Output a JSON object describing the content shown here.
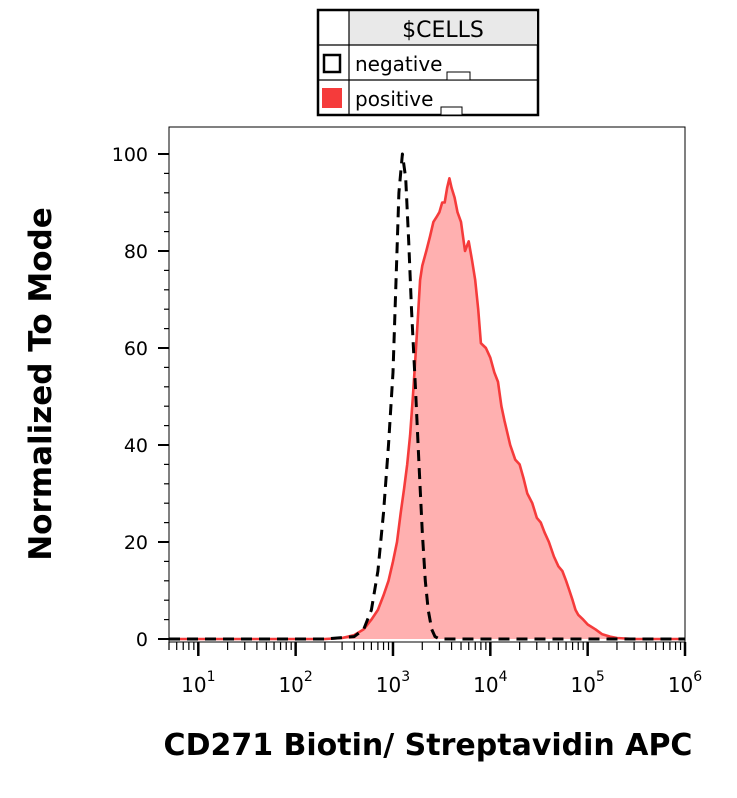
{
  "chart_data": {
    "type": "area",
    "title": "",
    "xlabel": "CD271 Biotin/ Streptavidin APC",
    "ylabel": "Normalized To Mode",
    "x_scale": "log",
    "xlim": [
      5,
      1000000
    ],
    "ylim": [
      0,
      100
    ],
    "y_ticks": [
      0,
      20,
      40,
      60,
      80,
      100
    ],
    "y_tick_labels": [
      "0",
      "20",
      "40",
      "60",
      "80",
      "100"
    ],
    "x_ticks": [
      10,
      100,
      1000,
      10000,
      100000,
      1000000
    ],
    "x_tick_base": "10",
    "x_tick_exponents": [
      "1",
      "2",
      "3",
      "4",
      "5",
      "6"
    ],
    "grid": false,
    "legend": {
      "title": "$CELLS",
      "position": "top-center",
      "entries": [
        {
          "name": "negative",
          "color": "#000000",
          "style": "dashed"
        },
        {
          "name": "positive",
          "color": "#f53b3b",
          "fill": "#ffb0b0"
        }
      ]
    },
    "series": [
      {
        "name": "negative",
        "x": [
          5,
          200,
          400,
          500,
          600,
          700,
          800,
          900,
          1000,
          1080,
          1150,
          1250,
          1350,
          1450,
          1550,
          1700,
          1850,
          2000,
          2150,
          2300,
          2500,
          2700,
          3000,
          3500,
          1000000
        ],
        "y": [
          0,
          0,
          0.5,
          2,
          6,
          14,
          26,
          40,
          55,
          75,
          92,
          100,
          95,
          82,
          68,
          52,
          36,
          22,
          12,
          6,
          2,
          0.5,
          0,
          0,
          0
        ]
      },
      {
        "name": "positive",
        "x": [
          5,
          200,
          300,
          400,
          500,
          600,
          700,
          800,
          900,
          1000,
          1100,
          1200,
          1300,
          1400,
          1500,
          1600,
          1700,
          1800,
          1900,
          2000,
          2200,
          2400,
          2600,
          2800,
          3000,
          3200,
          3400,
          3600,
          3800,
          4000,
          4300,
          4600,
          5000,
          5500,
          6000,
          6500,
          7000,
          7500,
          8000,
          9000,
          10000,
          11000,
          12000,
          13000,
          14000,
          16000,
          18000,
          20000,
          22000,
          24000,
          27000,
          30000,
          33000,
          36000,
          40000,
          45000,
          50000,
          55000,
          60000,
          65000,
          70000,
          75000,
          80000,
          90000,
          100000,
          120000,
          140000,
          170000,
          200000,
          300000,
          1000000
        ],
        "y": [
          0,
          0,
          0.2,
          0.8,
          2,
          4,
          6,
          9,
          12,
          16,
          20,
          26,
          31,
          36,
          42,
          50,
          58,
          66,
          74,
          77,
          80,
          83,
          86,
          87,
          88,
          90,
          90,
          93,
          95,
          93,
          91,
          88,
          86,
          80,
          82,
          78,
          74,
          68,
          61,
          60,
          58,
          55,
          53,
          48,
          45,
          40,
          37,
          36,
          33,
          30,
          28,
          25,
          24,
          22,
          20,
          17,
          15,
          14,
          12,
          10,
          8,
          6,
          5,
          4,
          3,
          2,
          1,
          0.5,
          0.2,
          0,
          0
        ]
      }
    ]
  }
}
